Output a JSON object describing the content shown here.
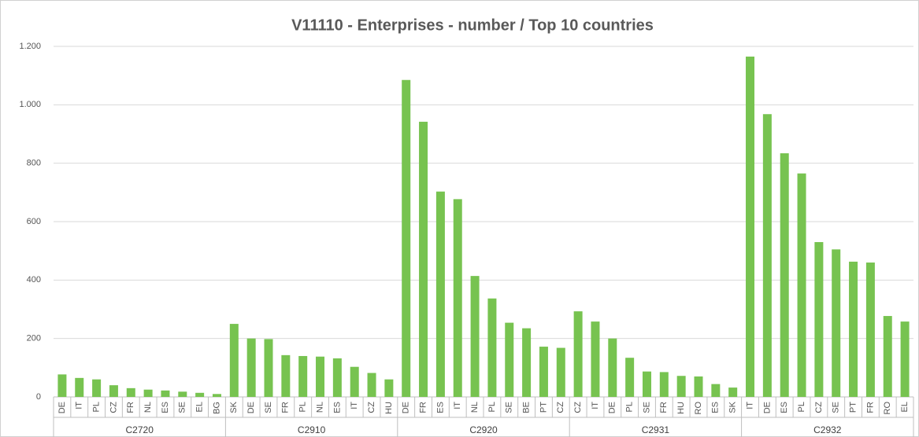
{
  "chart_data": {
    "type": "bar",
    "title": "V11110 - Enterprises - number / Top 10 countries",
    "color": "#77c350",
    "grid": true,
    "ylim": [
      0,
      1200
    ],
    "yticks": [
      0,
      200,
      400,
      600,
      800,
      {
        "value": 1000,
        "label": "1.000"
      },
      {
        "value": 1200,
        "label": "1.200"
      }
    ],
    "groups": [
      {
        "name": "C2720",
        "categories": [
          "DE",
          "IT",
          "PL",
          "CZ",
          "FR",
          "NL",
          "ES",
          "SE",
          "EL",
          "BG"
        ],
        "values": [
          77,
          65,
          60,
          40,
          30,
          25,
          22,
          18,
          14,
          10
        ]
      },
      {
        "name": "C2910",
        "categories": [
          "SK",
          "DE",
          "SE",
          "FR",
          "PL",
          "NL",
          "ES",
          "IT",
          "CZ",
          "HU"
        ],
        "values": [
          250,
          200,
          198,
          143,
          140,
          138,
          132,
          103,
          82,
          60
        ]
      },
      {
        "name": "C2920",
        "categories": [
          "DE",
          "FR",
          "ES",
          "IT",
          "NL",
          "PL",
          "SE",
          "BE",
          "PT",
          "CZ"
        ],
        "values": [
          1085,
          942,
          703,
          677,
          414,
          337,
          254,
          235,
          172,
          168
        ]
      },
      {
        "name": "C2931",
        "categories": [
          "CZ",
          "IT",
          "DE",
          "PL",
          "SE",
          "FR",
          "HU",
          "RO",
          "ES",
          "SK"
        ],
        "values": [
          293,
          258,
          200,
          134,
          87,
          85,
          72,
          70,
          44,
          32
        ]
      },
      {
        "name": "C2932",
        "categories": [
          "IT",
          "DE",
          "ES",
          "PL",
          "CZ",
          "SE",
          "PT",
          "FR",
          "RO",
          "EL"
        ],
        "values": [
          1165,
          968,
          834,
          765,
          530,
          505,
          463,
          460,
          277,
          258
        ]
      }
    ]
  }
}
